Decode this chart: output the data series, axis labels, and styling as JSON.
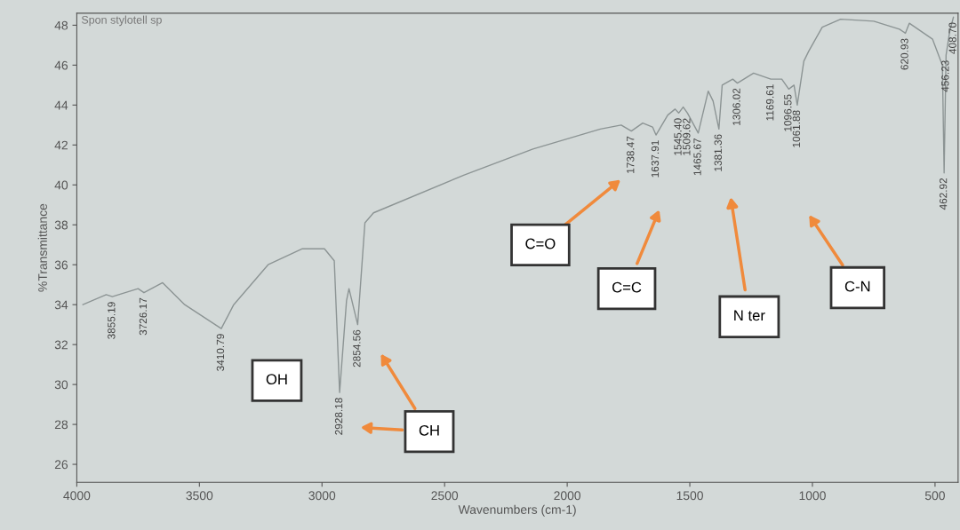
{
  "chart_data": {
    "type": "line",
    "title": "Spon stylotell sp",
    "xlabel": "Wavenumbers (cm-1)",
    "ylabel": "%Transmittance",
    "xlim": [
      4000,
      406
    ],
    "ylim": [
      25.1,
      48.6
    ],
    "xticks": [
      4000,
      3500,
      3000,
      2500,
      2000,
      1500,
      1000,
      500
    ],
    "yticks": [
      26,
      28,
      30,
      32,
      34,
      36,
      38,
      40,
      42,
      44,
      46,
      48
    ],
    "grid": false,
    "legend": false,
    "marker": "none",
    "line_style": "solid",
    "series": [
      {
        "color": "#8c9494",
        "x": [
          3975,
          3880,
          3855.19,
          3750,
          3726.17,
          3650,
          3560,
          3410.79,
          3360,
          3220,
          3080,
          2990,
          2950,
          2928.18,
          2900,
          2890,
          2854.56,
          2825,
          2790,
          2420,
          2140,
          1865,
          1780,
          1738.47,
          1692,
          1652,
          1637.91,
          1590,
          1560,
          1545.4,
          1527,
          1509.62,
          1465.67,
          1425,
          1405,
          1381.36,
          1368,
          1325,
          1306.02,
          1240,
          1169.61,
          1125,
          1096.55,
          1075,
          1061.88,
          1035,
          1015,
          960,
          885,
          750,
          645,
          620.93,
          605,
          510,
          470,
          462.92,
          455,
          440,
          425
        ],
        "values": [
          34.0,
          34.5,
          34.4,
          34.8,
          34.6,
          35.1,
          34.0,
          32.8,
          34.0,
          36.0,
          36.8,
          36.8,
          36.2,
          29.6,
          34.2,
          34.8,
          33.0,
          38.1,
          38.6,
          40.5,
          41.8,
          42.8,
          43.0,
          42.7,
          43.1,
          42.9,
          42.5,
          43.5,
          43.8,
          43.6,
          43.9,
          43.6,
          42.6,
          44.7,
          44.2,
          42.8,
          45.0,
          45.3,
          45.1,
          45.6,
          45.3,
          45.3,
          44.8,
          45.0,
          44.0,
          46.2,
          46.7,
          47.9,
          48.3,
          48.2,
          47.8,
          47.6,
          48.1,
          47.3,
          46.0,
          40.6,
          46.5,
          47.7,
          48.4
        ]
      }
    ],
    "annotations": [
      {
        "text": "3855.19",
        "x": 3855.19,
        "y": 34.4
      },
      {
        "text": "3726.17",
        "x": 3726.17,
        "y": 34.6
      },
      {
        "text": "3410.79",
        "x": 3410.79,
        "y": 32.8
      },
      {
        "text": "2928.18",
        "x": 2928.18,
        "y": 29.6
      },
      {
        "text": "2854.56",
        "x": 2854.56,
        "y": 33.0
      },
      {
        "text": "1738.47",
        "x": 1738.47,
        "y": 42.7
      },
      {
        "text": "1637.91",
        "x": 1637.91,
        "y": 42.5
      },
      {
        "text": "1545.40",
        "x": 1545.4,
        "y": 43.6
      },
      {
        "text": "1509.62",
        "x": 1509.62,
        "y": 43.6
      },
      {
        "text": "1465.67",
        "x": 1465.67,
        "y": 42.6
      },
      {
        "text": "1381.36",
        "x": 1381.36,
        "y": 42.8
      },
      {
        "text": "1306.02",
        "x": 1306.02,
        "y": 45.1
      },
      {
        "text": "1169.61",
        "x": 1169.61,
        "y": 45.3
      },
      {
        "text": "1096.55",
        "x": 1096.55,
        "y": 44.8
      },
      {
        "text": "1061.88",
        "x": 1061.88,
        "y": 44.0
      },
      {
        "text": "620.93",
        "x": 620.93,
        "y": 47.6
      },
      {
        "text": "462.92",
        "x": 462.92,
        "y": 40.6
      },
      {
        "text": "456.23",
        "x": 455,
        "y": 46.5
      },
      {
        "text": "408.70",
        "x": 425,
        "y": 48.4
      },
      "OH",
      "CH",
      "C=O",
      "C=C",
      "N ter",
      "C-N"
    ]
  }
}
